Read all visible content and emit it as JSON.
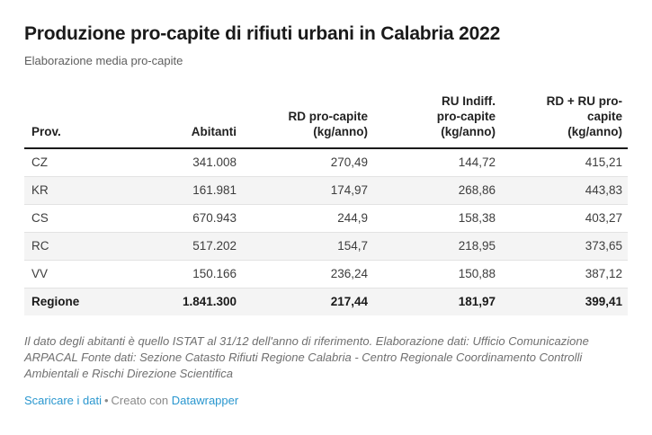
{
  "header": {
    "title": "Produzione pro-capite di rifiuti urbani in Calabria 2022",
    "subtitle": "Elaborazione media pro-capite"
  },
  "table": {
    "headers": [
      "Prov.",
      "Abitanti",
      "RD pro-capite\n(kg/anno)",
      "RU Indiff.\npro-capite\n(kg/anno)",
      "RD + RU pro-\ncapite\n(kg/anno)"
    ],
    "rows": [
      {
        "cells": [
          "CZ",
          "341.008",
          "270,49",
          "144,72",
          "415,21"
        ]
      },
      {
        "cells": [
          "KR",
          "161.981",
          "174,97",
          "268,86",
          "443,83"
        ]
      },
      {
        "cells": [
          "CS",
          "670.943",
          "244,9",
          "158,38",
          "403,27"
        ]
      },
      {
        "cells": [
          "RC",
          "517.202",
          "154,7",
          "218,95",
          "373,65"
        ]
      },
      {
        "cells": [
          "VV",
          "150.166",
          "236,24",
          "150,88",
          "387,12"
        ]
      },
      {
        "cells": [
          "Regione",
          "1.841.300",
          "217,44",
          "181,97",
          "399,41"
        ]
      }
    ]
  },
  "footer": {
    "notes": "Il dato degli abitanti è quello ISTAT al 31/12 dell'anno di riferimento. Elaborazione dati: Ufficio Comunicazione ARPACAL Fonte dati: Sezione Catasto Rifiuti Regione Calabria - Centro Regionale Coordinamento Controlli Ambientali e Rischi Direzione Scientifica",
    "download_label": "Scaricare i dati",
    "separator": "•",
    "attribution_prefix": "Creato con",
    "attribution_link": "Datawrapper"
  },
  "colors": {
    "link_blue": "#2a97cf",
    "header_rule": "#1a1a1a",
    "zebra_row": "#f4f4f4",
    "row_separator": "#e2e2e2"
  },
  "chart_data": {
    "type": "table",
    "title": "Produzione pro-capite di rifiuti urbani in Calabria 2022",
    "subtitle": "Elaborazione media pro-capite",
    "columns": [
      "Prov.",
      "Abitanti",
      "RD pro-capite (kg/anno)",
      "RU Indiff. pro-capite (kg/anno)",
      "RD + RU pro-capite (kg/anno)"
    ],
    "rows": [
      [
        "CZ",
        "341.008",
        "270,49",
        "144,72",
        "415,21"
      ],
      [
        "KR",
        "161.981",
        "174,97",
        "268,86",
        "443,83"
      ],
      [
        "CS",
        "670.943",
        "244,9",
        "158,38",
        "403,27"
      ],
      [
        "RC",
        "517.202",
        "154,7",
        "218,95",
        "373,65"
      ],
      [
        "VV",
        "150.166",
        "236,24",
        "150,88",
        "387,12"
      ],
      [
        "Regione",
        "1.841.300",
        "217,44",
        "181,97",
        "399,41"
      ]
    ],
    "notes": "Il dato degli abitanti è quello ISTAT al 31/12 dell'anno di riferimento. Elaborazione dati: Ufficio Comunicazione ARPACAL Fonte dati: Sezione Catasto Rifiuti Regione Calabria - Centro Regionale Coordinamento Controlli Ambientali e Rischi Direzione Scientifica",
    "layout_hints": {
      "zebra_striping": true,
      "total_row": "Regione",
      "number_alignment": "right"
    }
  }
}
